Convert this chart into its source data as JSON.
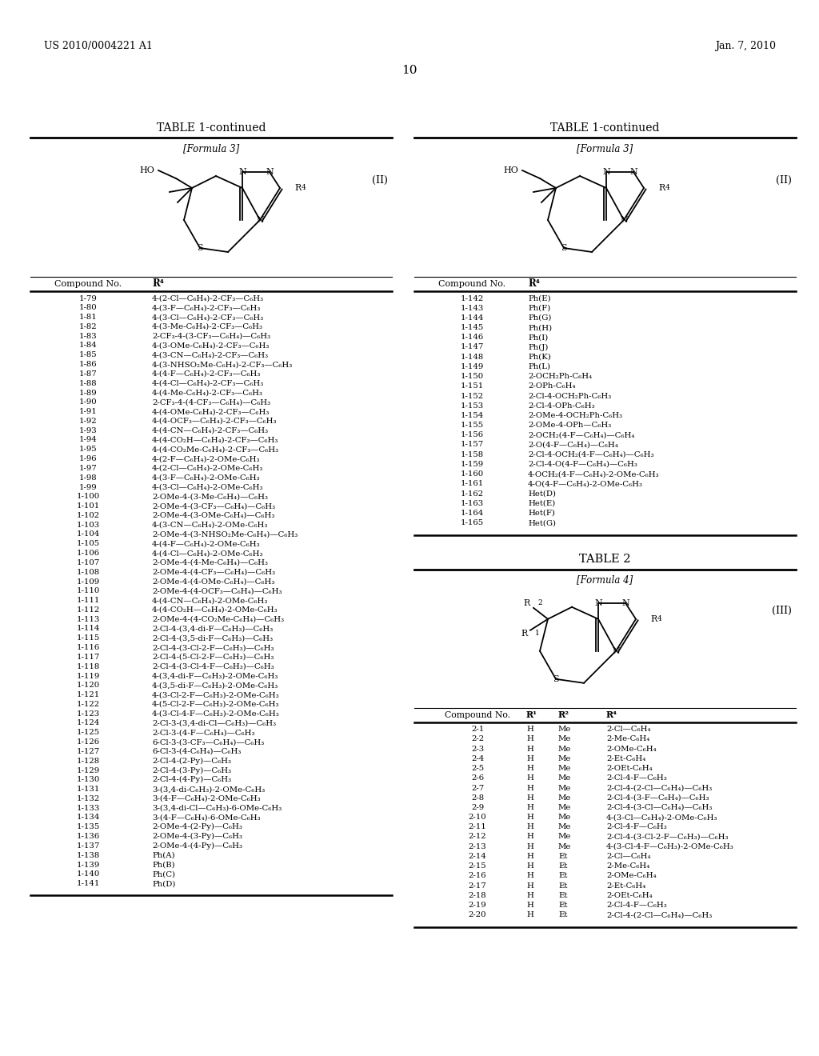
{
  "header_left": "US 2010/0004221 A1",
  "header_right": "Jan. 7, 2010",
  "page_number": "10",
  "background_color": "#ffffff",
  "left_table": {
    "title": "TABLE 1-continued",
    "formula_label": "[Formula 3]",
    "formula_tag": "(II)",
    "header_col1": "Compound No.",
    "header_col2": "R⁴",
    "rows": [
      [
        "1-79",
        "4-(2-Cl—C₆H₄)-2-CF₃—C₆H₃"
      ],
      [
        "1-80",
        "4-(3-F—C₆H₄)-2-CF₃—C₆H₃"
      ],
      [
        "1-81",
        "4-(3-Cl—C₆H₄)-2-CF₃—C₆H₃"
      ],
      [
        "1-82",
        "4-(3-Me-C₆H₄)-2-CF₃—C₆H₃"
      ],
      [
        "1-83",
        "2-CF₃-4-(3-CF₃—C₆H₄)—C₆H₃"
      ],
      [
        "1-84",
        "4-(3-OMe-C₆H₄)-2-CF₃—C₆H₃"
      ],
      [
        "1-85",
        "4-(3-CN—C₆H₄)-2-CF₃—C₆H₃"
      ],
      [
        "1-86",
        "4-(3-NHSO₂Me-C₆H₄)-2-CF₃—C₆H₃"
      ],
      [
        "1-87",
        "4-(4-F—C₆H₄)-2-CF₃—C₆H₃"
      ],
      [
        "1-88",
        "4-(4-Cl—C₆H₄)-2-CF₃—C₆H₃"
      ],
      [
        "1-89",
        "4-(4-Me-C₆H₄)-2-CF₃—C₆H₃"
      ],
      [
        "1-90",
        "2-CF₃-4-(4-CF₃—C₆H₄)—C₆H₃"
      ],
      [
        "1-91",
        "4-(4-OMe-C₆H₄)-2-CF₃—C₆H₃"
      ],
      [
        "1-92",
        "4-(4-OCF₃—C₆H₄)-2-CF₃—C₆H₃"
      ],
      [
        "1-93",
        "4-(4-CN—C₆H₄)-2-CF₃—C₆H₃"
      ],
      [
        "1-94",
        "4-(4-CO₂H—C₆H₄)-2-CF₃—C₆H₃"
      ],
      [
        "1-95",
        "4-(4-CO₂Me-C₆H₄)-2-CF₃—C₆H₃"
      ],
      [
        "1-96",
        "4-(2-F—C₆H₄)-2-OMe-C₆H₃"
      ],
      [
        "1-97",
        "4-(2-Cl—C₆H₄)-2-OMe-C₆H₃"
      ],
      [
        "1-98",
        "4-(3-F—C₆H₄)-2-OMe-C₆H₃"
      ],
      [
        "1-99",
        "4-(3-Cl—C₆H₄)-2-OMe-C₆H₃"
      ],
      [
        "1-100",
        "2-OMe-4-(3-Me-C₆H₄)—C₆H₃"
      ],
      [
        "1-101",
        "2-OMe-4-(3-CF₃—C₆H₄)—C₆H₃"
      ],
      [
        "1-102",
        "2-OMe-4-(3-OMe-C₆H₄)—C₆H₃"
      ],
      [
        "1-103",
        "4-(3-CN—C₆H₄)-2-OMe-C₆H₃"
      ],
      [
        "1-104",
        "2-OMe-4-(3-NHSO₂Me-C₆H₄)—C₆H₃"
      ],
      [
        "1-105",
        "4-(4-F—C₆H₄)-2-OMe-C₆H₃"
      ],
      [
        "1-106",
        "4-(4-Cl—C₆H₄)-2-OMe-C₆H₃"
      ],
      [
        "1-107",
        "2-OMe-4-(4-Me-C₆H₄)—C₆H₃"
      ],
      [
        "1-108",
        "2-OMe-4-(4-CF₃—C₆H₄)—C₆H₃"
      ],
      [
        "1-109",
        "2-OMe-4-(4-OMe-C₆H₄)—C₆H₃"
      ],
      [
        "1-110",
        "2-OMe-4-(4-OCF₃—C₆H₄)—C₆H₃"
      ],
      [
        "1-111",
        "4-(4-CN—C₆H₄)-2-OMe-C₆H₃"
      ],
      [
        "1-112",
        "4-(4-CO₂H—C₆H₄)-2-OMe-C₆H₃"
      ],
      [
        "1-113",
        "2-OMe-4-(4-CO₂Me-C₆H₄)—C₆H₃"
      ],
      [
        "1-114",
        "2-Cl-4-(3,4-di-F—C₆H₃)—C₆H₃"
      ],
      [
        "1-115",
        "2-Cl-4-(3,5-di-F—C₆H₃)—C₆H₃"
      ],
      [
        "1-116",
        "2-Cl-4-(3-Cl-2-F—C₆H₃)—C₆H₃"
      ],
      [
        "1-117",
        "2-Cl-4-(5-Cl-2-F—C₆H₃)—C₆H₃"
      ],
      [
        "1-118",
        "2-Cl-4-(3-Cl-4-F—C₆H₃)—C₆H₃"
      ],
      [
        "1-119",
        "4-(3,4-di-F—C₆H₃)-2-OMe-C₆H₃"
      ],
      [
        "1-120",
        "4-(3,5-di-F—C₆H₃)-2-OMe-C₆H₃"
      ],
      [
        "1-121",
        "4-(3-Cl-2-F—C₆H₃)-2-OMe-C₆H₃"
      ],
      [
        "1-122",
        "4-(5-Cl-2-F—C₆H₃)-2-OMe-C₆H₃"
      ],
      [
        "1-123",
        "4-(3-Cl-4-F—C₆H₃)-2-OMe-C₆H₃"
      ],
      [
        "1-124",
        "2-Cl-3-(3,4-di-Cl—C₆H₃)—C₆H₃"
      ],
      [
        "1-125",
        "2-Cl-3-(4-F—C₆H₄)—C₆H₃"
      ],
      [
        "1-126",
        "6-Cl-3-(3-CF₃—C₆H₄)—C₆H₃"
      ],
      [
        "1-127",
        "6-Cl-3-(4-C₆H₄)—C₆H₃"
      ],
      [
        "1-128",
        "2-Cl-4-(2-Py)—C₆H₃"
      ],
      [
        "1-129",
        "2-Cl-4-(3-Py)—C₆H₃"
      ],
      [
        "1-130",
        "2-Cl-4-(4-Py)—C₆H₃"
      ],
      [
        "1-131",
        "3-(3,4-di-C₆H₃)-2-OMe-C₆H₃"
      ],
      [
        "1-132",
        "3-(4-F—C₆H₄)-2-OMe-C₆H₃"
      ],
      [
        "1-133",
        "3-(3,4-di-Cl—C₆H₃)-6-OMe-C₆H₃"
      ],
      [
        "1-134",
        "3-(4-F—C₆H₄)-6-OMe-C₆H₃"
      ],
      [
        "1-135",
        "2-OMe-4-(2-Py)—C₆H₃"
      ],
      [
        "1-136",
        "2-OMe-4-(3-Py)—C₆H₃"
      ],
      [
        "1-137",
        "2-OMe-4-(4-Py)—C₆H₃"
      ],
      [
        "1-138",
        "Ph(A)"
      ],
      [
        "1-139",
        "Ph(B)"
      ],
      [
        "1-140",
        "Ph(C)"
      ],
      [
        "1-141",
        "Ph(D)"
      ]
    ]
  },
  "right_table1": {
    "title": "TABLE 1-continued",
    "formula_label": "[Formula 3]",
    "formula_tag": "(II)",
    "header_col1": "Compound No.",
    "header_col2": "R⁴",
    "rows": [
      [
        "1-142",
        "Ph(E)"
      ],
      [
        "1-143",
        "Ph(F)"
      ],
      [
        "1-144",
        "Ph(G)"
      ],
      [
        "1-145",
        "Ph(H)"
      ],
      [
        "1-146",
        "Ph(I)"
      ],
      [
        "1-147",
        "Ph(J)"
      ],
      [
        "1-148",
        "Ph(K)"
      ],
      [
        "1-149",
        "Ph(L)"
      ],
      [
        "1-150",
        "2-OCH₂Ph-C₆H₄"
      ],
      [
        "1-151",
        "2-OPh-C₆H₄"
      ],
      [
        "1-152",
        "2-Cl-4-OCH₂Ph-C₆H₃"
      ],
      [
        "1-153",
        "2-Cl-4-OPh-C₆H₃"
      ],
      [
        "1-154",
        "2-OMe-4-OCH₂Ph-C₆H₃"
      ],
      [
        "1-155",
        "2-OMe-4-OPh—C₆H₃"
      ],
      [
        "1-156",
        "2-OCH₂(4-F—C₆H₄)—C₆H₄"
      ],
      [
        "1-157",
        "2-O(4-F—C₆H₄)—C₆H₄"
      ],
      [
        "1-158",
        "2-Cl-4-OCH₂(4-F—C₆H₄)—C₆H₃"
      ],
      [
        "1-159",
        "2-Cl-4-O(4-F—C₆H₄)—C₆H₃"
      ],
      [
        "1-160",
        "4-OCH₂(4-F—C₆H₄)-2-OMe-C₆H₃"
      ],
      [
        "1-161",
        "4-O(4-F—C₆H₄)-2-OMe-C₆H₃"
      ],
      [
        "1-162",
        "Het(D)"
      ],
      [
        "1-163",
        "Het(E)"
      ],
      [
        "1-164",
        "Het(F)"
      ],
      [
        "1-165",
        "Het(G)"
      ]
    ]
  },
  "right_table2": {
    "title": "TABLE 2",
    "formula_label": "[Formula 4]",
    "formula_tag": "(III)",
    "header": [
      "Compound No.",
      "R¹",
      "R²",
      "R⁴"
    ],
    "rows": [
      [
        "2-1",
        "H",
        "Me",
        "2-Cl—C₆H₄"
      ],
      [
        "2-2",
        "H",
        "Me",
        "2-Me-C₆H₄"
      ],
      [
        "2-3",
        "H",
        "Me",
        "2-OMe-C₆H₄"
      ],
      [
        "2-4",
        "H",
        "Me",
        "2-Et-C₆H₄"
      ],
      [
        "2-5",
        "H",
        "Me",
        "2-OEt-C₆H₄"
      ],
      [
        "2-6",
        "H",
        "Me",
        "2-Cl-4-F—C₆H₃"
      ],
      [
        "2-7",
        "H",
        "Me",
        "2-Cl-4-(2-Cl—C₆H₄)—C₆H₃"
      ],
      [
        "2-8",
        "H",
        "Me",
        "2-Cl-4-(3-F—C₆H₄)—C₆H₃"
      ],
      [
        "2-9",
        "H",
        "Me",
        "2-Cl-4-(3-Cl—C₆H₄)—C₆H₃"
      ],
      [
        "2-10",
        "H",
        "Me",
        "4-(3-Cl—C₆H₄)-2-OMe-C₆H₃"
      ],
      [
        "2-11",
        "H",
        "Me",
        "2-Cl-4-F—C₆H₃"
      ],
      [
        "2-12",
        "H",
        "Me",
        "2-Cl-4-(3-Cl-2-F—C₆H₃)—C₆H₃"
      ],
      [
        "2-13",
        "H",
        "Me",
        "4-(3-Cl-4-F—C₆H₃)-2-OMe-C₆H₃"
      ],
      [
        "2-14",
        "H",
        "Et",
        "2-Cl—C₆H₄"
      ],
      [
        "2-15",
        "H",
        "Et",
        "2-Me-C₆H₄"
      ],
      [
        "2-16",
        "H",
        "Et",
        "2-OMe-C₆H₄"
      ],
      [
        "2-17",
        "H",
        "Et",
        "2-Et-C₆H₄"
      ],
      [
        "2-18",
        "H",
        "Et",
        "2-OEt-C₆H₄"
      ],
      [
        "2-19",
        "H",
        "Et",
        "2-Cl-4-F—C₆H₃"
      ],
      [
        "2-20",
        "H",
        "Et",
        "2-Cl-4-(2-Cl—C₆H₄)—C₆H₃"
      ]
    ]
  }
}
